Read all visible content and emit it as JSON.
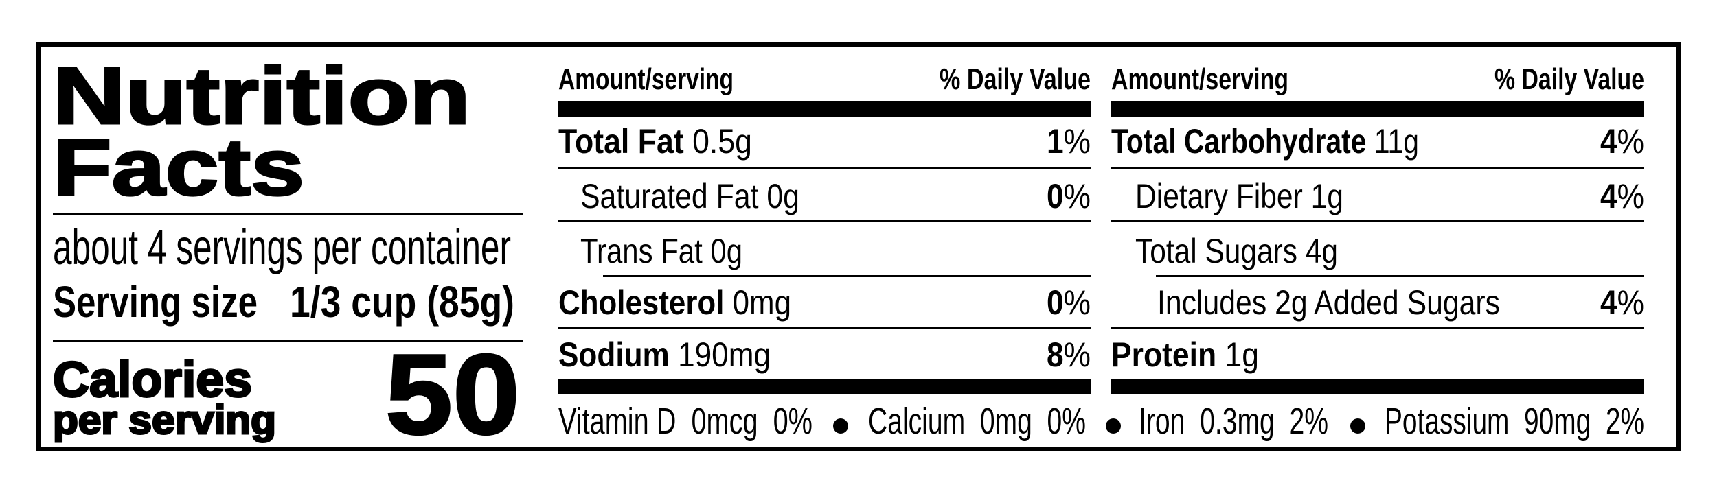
{
  "title": {
    "line1": "Nutrition",
    "line2": "Facts"
  },
  "servings_per_container": "about 4 servings per container",
  "serving_size": {
    "label": "Serving size",
    "value": "1/3 cup (85g)"
  },
  "calories": {
    "label": "Calories",
    "sublabel": "per serving",
    "value": "50"
  },
  "left_column": {
    "header_amount": "Amount/serving",
    "header_dv": "% Daily Value",
    "rows": [
      {
        "name": "Total Fat",
        "amount": "0.5g",
        "dv": "1",
        "pct": "%"
      },
      {
        "name": "Saturated Fat 0g",
        "amount": "",
        "dv": "0",
        "pct": "%"
      },
      {
        "name": "Trans Fat 0g",
        "amount": "",
        "dv": "",
        "pct": ""
      },
      {
        "name": "Cholesterol",
        "amount": "0mg",
        "dv": "0",
        "pct": "%"
      },
      {
        "name": "Sodium",
        "amount": "190mg",
        "dv": "8",
        "pct": "%"
      }
    ]
  },
  "right_column": {
    "header_amount": "Amount/serving",
    "header_dv": "% Daily Value",
    "rows": [
      {
        "name": "Total Carbohydrate",
        "amount": "11g",
        "dv": "4",
        "pct": "%"
      },
      {
        "name": "Dietary Fiber 1g",
        "amount": "",
        "dv": "4",
        "pct": "%"
      },
      {
        "name": "Total Sugars 4g",
        "amount": "",
        "dv": "",
        "pct": ""
      },
      {
        "name": "Includes 2g Added Sugars",
        "amount": "",
        "dv": "4",
        "pct": "%"
      },
      {
        "name": "Protein",
        "amount": "1g",
        "dv": "",
        "pct": ""
      }
    ]
  },
  "micronutrients": [
    {
      "text": "Vitamin D  0mcg  0%"
    },
    {
      "text": "Calcium  0mg  0%"
    },
    {
      "text": "Iron  0.3mg  2%"
    },
    {
      "text": "Potassium  90mg  2%"
    }
  ],
  "colors": {
    "ink": "#000000",
    "background": "#ffffff"
  }
}
